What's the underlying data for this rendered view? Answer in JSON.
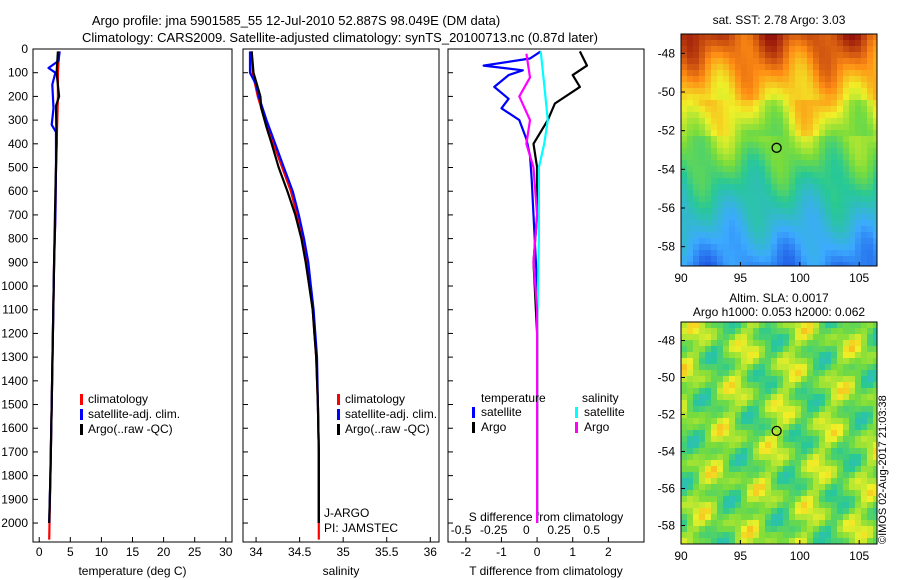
{
  "header": {
    "line1": "Argo profile: jma 5901585_55 12-Jul-2010 52.887S 98.049E (DM data)",
    "line2": "Climatology: CARS2009. Satellite-adjusted climatology: synTS_20100713.nc (0.87d later)"
  },
  "colors": {
    "clim": "#ff0000",
    "sat": "#0000ff",
    "argo": "#000000",
    "sal_sat": "#00ffff",
    "sal_argo": "#ff00ff"
  },
  "chart_data": [
    {
      "type": "line",
      "id": "temperature",
      "xlabel": "temperature (deg C)",
      "ylabel": "",
      "xlim": [
        -1,
        31
      ],
      "ylim": [
        2080,
        0
      ],
      "xticks": [
        0,
        5,
        10,
        15,
        20,
        25,
        30
      ],
      "yticks": [
        0,
        100,
        200,
        300,
        400,
        500,
        600,
        700,
        800,
        900,
        1000,
        1100,
        1200,
        1300,
        1400,
        1500,
        1600,
        1700,
        1800,
        1900,
        2000
      ],
      "legend": [
        "climatology",
        "satellite-adj. clim.",
        "Argo(..raw -QC)"
      ],
      "legend_position": "lower-center",
      "series": [
        {
          "name": "climatology",
          "color": "clim",
          "points": [
            [
              3.2,
              10
            ],
            [
              3.0,
              100
            ],
            [
              3.0,
              200
            ],
            [
              2.9,
              300
            ],
            [
              2.8,
              400
            ],
            [
              2.7,
              500
            ],
            [
              2.6,
              700
            ],
            [
              2.4,
              900
            ],
            [
              2.2,
              1200
            ],
            [
              2.0,
              1500
            ],
            [
              1.8,
              1800
            ],
            [
              1.6,
              2070
            ]
          ]
        },
        {
          "name": "satellite-adj. clim.",
          "color": "sat",
          "points": [
            [
              3.3,
              10
            ],
            [
              3.1,
              50
            ],
            [
              1.5,
              80
            ],
            [
              2.6,
              100
            ],
            [
              2.1,
              150
            ],
            [
              2.3,
              250
            ],
            [
              2.0,
              320
            ],
            [
              2.7,
              350
            ],
            [
              2.7,
              500
            ],
            [
              2.6,
              700
            ],
            [
              2.4,
              900
            ],
            [
              2.2,
              1200
            ],
            [
              2.0,
              1500
            ],
            [
              1.8,
              1800
            ],
            [
              1.6,
              2000
            ]
          ]
        },
        {
          "name": "Argo(..raw -QC)",
          "color": "argo",
          "points": [
            [
              3.0,
              10
            ],
            [
              2.8,
              100
            ],
            [
              3.2,
              200
            ],
            [
              2.7,
              240
            ],
            [
              2.8,
              400
            ],
            [
              2.6,
              600
            ],
            [
              2.4,
              900
            ],
            [
              2.2,
              1200
            ],
            [
              2.0,
              1500
            ],
            [
              1.8,
              1800
            ],
            [
              1.6,
              2000
            ]
          ]
        }
      ]
    },
    {
      "type": "line",
      "id": "salinity",
      "xlabel": "salinity",
      "ylabel": "",
      "xlim": [
        33.85,
        36.1
      ],
      "ylim": [
        2080,
        0
      ],
      "xticks": [
        34,
        34.5,
        35,
        35.5,
        36
      ],
      "xticklabels": [
        "34",
        "34.5",
        "35",
        "35.5",
        "36"
      ],
      "legend": [
        "climatology",
        "satellite-adj. clim.",
        "Argo(..raw -QC)"
      ],
      "legend_position": "lower-right",
      "annotations": [
        "J-ARGO",
        "PI: JAMSTEC"
      ],
      "series": [
        {
          "name": "climatology",
          "color": "clim",
          "points": [
            [
              33.95,
              10
            ],
            [
              33.96,
              100
            ],
            [
              34.02,
              200
            ],
            [
              34.1,
              300
            ],
            [
              34.2,
              400
            ],
            [
              34.3,
              500
            ],
            [
              34.4,
              600
            ],
            [
              34.47,
              700
            ],
            [
              34.53,
              800
            ],
            [
              34.58,
              900
            ],
            [
              34.62,
              1000
            ],
            [
              34.65,
              1100
            ],
            [
              34.67,
              1200
            ],
            [
              34.69,
              1300
            ],
            [
              34.71,
              1500
            ],
            [
              34.72,
              1700
            ],
            [
              34.72,
              1900
            ],
            [
              34.72,
              2070
            ]
          ]
        },
        {
          "name": "satellite-adj. clim.",
          "color": "sat",
          "points": [
            [
              33.93,
              10
            ],
            [
              33.93,
              100
            ],
            [
              34.0,
              150
            ],
            [
              34.03,
              200
            ],
            [
              34.12,
              300
            ],
            [
              34.22,
              400
            ],
            [
              34.32,
              500
            ],
            [
              34.42,
              600
            ],
            [
              34.49,
              700
            ],
            [
              34.55,
              800
            ],
            [
              34.6,
              900
            ],
            [
              34.63,
              1000
            ],
            [
              34.66,
              1100
            ],
            [
              34.68,
              1200
            ],
            [
              34.7,
              1300
            ],
            [
              34.71,
              1500
            ],
            [
              34.72,
              1700
            ],
            [
              34.72,
              1900
            ],
            [
              34.72,
              2000
            ]
          ]
        },
        {
          "name": "Argo(..raw -QC)",
          "color": "argo",
          "points": [
            [
              33.95,
              10
            ],
            [
              33.97,
              100
            ],
            [
              34.05,
              200
            ],
            [
              34.06,
              250
            ],
            [
              34.12,
              330
            ],
            [
              34.18,
              400
            ],
            [
              34.26,
              500
            ],
            [
              34.36,
              600
            ],
            [
              34.45,
              700
            ],
            [
              34.52,
              800
            ],
            [
              34.57,
              900
            ],
            [
              34.61,
              1000
            ],
            [
              34.65,
              1100
            ],
            [
              34.67,
              1200
            ],
            [
              34.69,
              1300
            ],
            [
              34.71,
              1500
            ],
            [
              34.72,
              1700
            ],
            [
              34.72,
              2000
            ]
          ]
        }
      ]
    },
    {
      "type": "line",
      "id": "differences",
      "xlabel": "T difference from climatology",
      "xlabel_top": "S difference from climatology",
      "xlim": [
        -2.5,
        3.0
      ],
      "ylim": [
        2080,
        0
      ],
      "xticks": [
        -2,
        -1,
        0,
        1,
        2
      ],
      "top_ticks": [
        -0.5,
        -0.25,
        0,
        0.25,
        0.5
      ],
      "top_ticklabels": [
        "-0.5",
        "-0.25",
        "0",
        "0.25",
        "0.5"
      ],
      "legend_headers": [
        "temperature",
        "salinity"
      ],
      "legend": [
        "satellite",
        "Argo",
        "satellite",
        "Argo"
      ],
      "legend_position": "lower-center",
      "series": [
        {
          "name": "temperature satellite",
          "color": "sat",
          "points": [
            [
              0.1,
              10
            ],
            [
              -0.2,
              40
            ],
            [
              -1.5,
              70
            ],
            [
              -0.4,
              90
            ],
            [
              -0.8,
              110
            ],
            [
              -1.2,
              160
            ],
            [
              -0.8,
              210
            ],
            [
              -1.0,
              250
            ],
            [
              -0.5,
              300
            ],
            [
              -0.3,
              380
            ],
            [
              -0.2,
              450
            ],
            [
              -0.15,
              550
            ],
            [
              -0.1,
              700
            ],
            [
              0,
              1000
            ],
            [
              0,
              1300
            ],
            [
              0,
              1600
            ],
            [
              0,
              2000
            ]
          ]
        },
        {
          "name": "temperature Argo",
          "color": "argo",
          "points": [
            [
              1.2,
              10
            ],
            [
              1.4,
              70
            ],
            [
              1.0,
              110
            ],
            [
              1.2,
              160
            ],
            [
              0.5,
              230
            ],
            [
              0.3,
              300
            ],
            [
              -0.1,
              400
            ],
            [
              0,
              500
            ],
            [
              0,
              700
            ],
            [
              -0.1,
              900
            ],
            [
              0,
              1200
            ],
            [
              0,
              1500
            ],
            [
              0,
              1800
            ],
            [
              0,
              2000
            ]
          ]
        },
        {
          "name": "salinity satellite",
          "color": "sal_sat",
          "points": [
            [
              0.1,
              10
            ],
            [
              0.2,
              150
            ],
            [
              0.3,
              300
            ],
            [
              0.2,
              400
            ],
            [
              0.05,
              500
            ],
            [
              0.05,
              800
            ],
            [
              0.0,
              1200
            ],
            [
              0.0,
              1600
            ],
            [
              0.0,
              2000
            ]
          ]
        },
        {
          "name": "salinity Argo",
          "color": "sal_argo",
          "points": [
            [
              -0.3,
              20
            ],
            [
              -0.2,
              120
            ],
            [
              -0.5,
              200
            ],
            [
              -0.2,
              300
            ],
            [
              -0.3,
              400
            ],
            [
              -0.1,
              500
            ],
            [
              0,
              700
            ],
            [
              -0.1,
              900
            ],
            [
              0,
              1100
            ],
            [
              0,
              1400
            ],
            [
              0,
              1800
            ],
            [
              0,
              2000
            ]
          ]
        }
      ]
    },
    {
      "type": "heatmap",
      "id": "sst-map",
      "title": "sat. SST: 2.78 Argo: 3.03",
      "xlim": [
        90,
        106.5
      ],
      "ylim": [
        -59,
        -47
      ],
      "xticks": [
        90,
        95,
        100,
        105
      ],
      "yticks": [
        -48,
        -50,
        -52,
        -54,
        -56,
        -58
      ],
      "marker": [
        98.049,
        -52.887
      ]
    },
    {
      "type": "heatmap",
      "id": "sla-map",
      "title": "Altim. SLA: 0.0017",
      "subtitle": "Argo h1000: 0.053 h2000: 0.062",
      "xlim": [
        90,
        106.5
      ],
      "ylim": [
        -59,
        -47
      ],
      "xticks": [
        90,
        95,
        100,
        105
      ],
      "yticks": [
        -48,
        -50,
        -52,
        -54,
        -56,
        -58
      ],
      "marker": [
        98.049,
        -52.887
      ]
    }
  ],
  "stamp": "©IMOS 02-Aug-2017 21:03:38"
}
